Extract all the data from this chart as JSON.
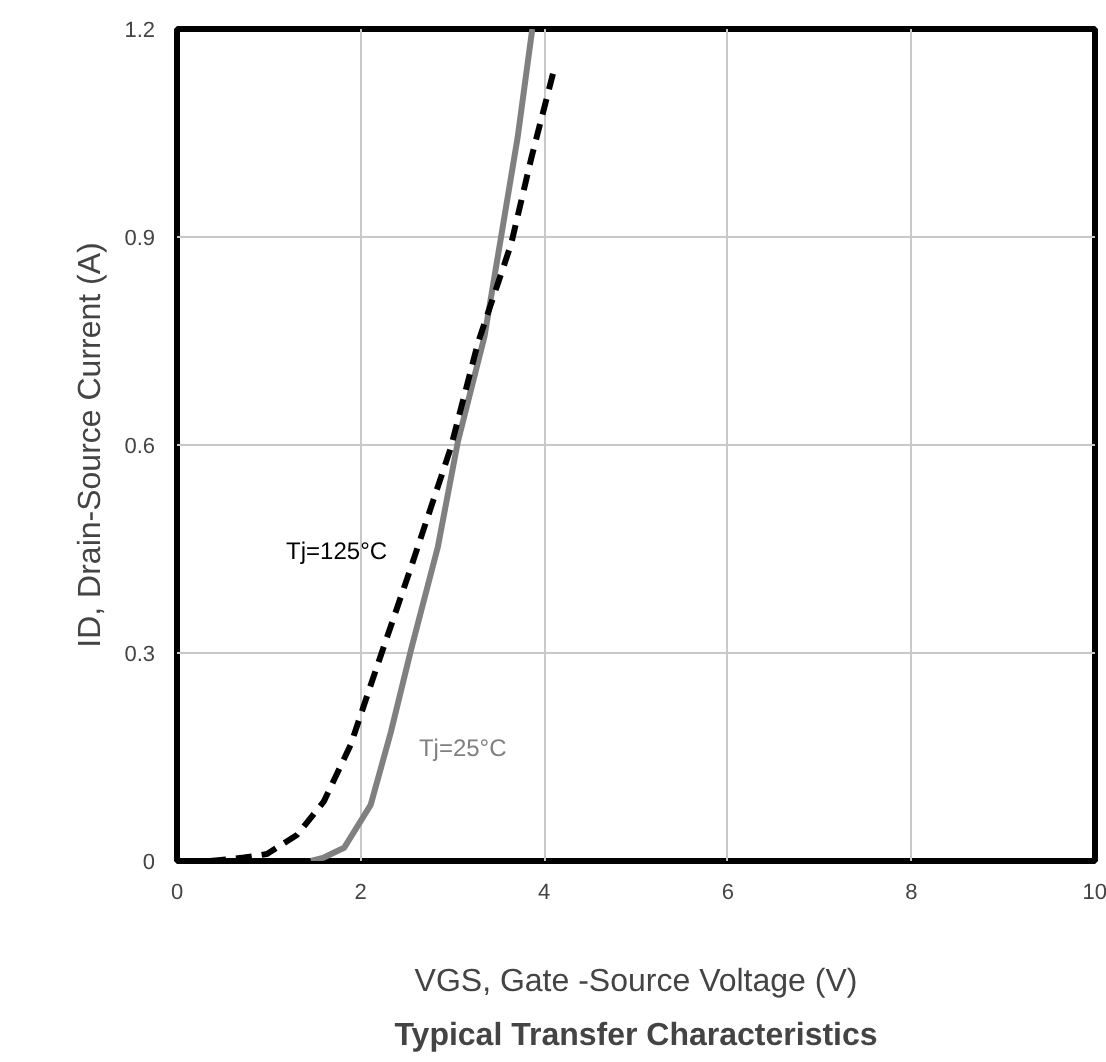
{
  "chart_data": {
    "type": "line",
    "title": "Typical Transfer Characteristics",
    "xlabel": "VGS, Gate -Source Voltage (V)",
    "ylabel": "ID, Drain-Source Current (A)",
    "xlim": [
      0,
      10
    ],
    "ylim": [
      0,
      1.2
    ],
    "xticks": [
      0,
      2,
      4,
      6,
      8,
      10
    ],
    "yticks": [
      0,
      0.3,
      0.6,
      0.9,
      1.2
    ],
    "grid": true,
    "series": [
      {
        "name": "Tj=25°C",
        "color": "#808080",
        "line_style": "solid",
        "x": [
          1.46,
          1.6,
          1.82,
          2.11,
          2.33,
          2.55,
          2.84,
          3.06,
          3.35,
          3.53,
          3.71,
          3.87
        ],
        "values": [
          0,
          0.005,
          0.019,
          0.081,
          0.186,
          0.305,
          0.452,
          0.605,
          0.757,
          0.9,
          1.043,
          1.2
        ]
      },
      {
        "name": "Tj=125°C",
        "color": "#000000",
        "line_style": "dashed",
        "x": [
          0.36,
          0.73,
          0.98,
          1.31,
          1.6,
          1.89,
          2.18,
          2.55,
          2.98,
          3.28,
          3.64,
          3.86,
          4.11
        ],
        "values": [
          0,
          0.005,
          0.01,
          0.038,
          0.086,
          0.167,
          0.281,
          0.424,
          0.595,
          0.748,
          0.89,
          1.014,
          1.143
        ]
      }
    ]
  }
}
